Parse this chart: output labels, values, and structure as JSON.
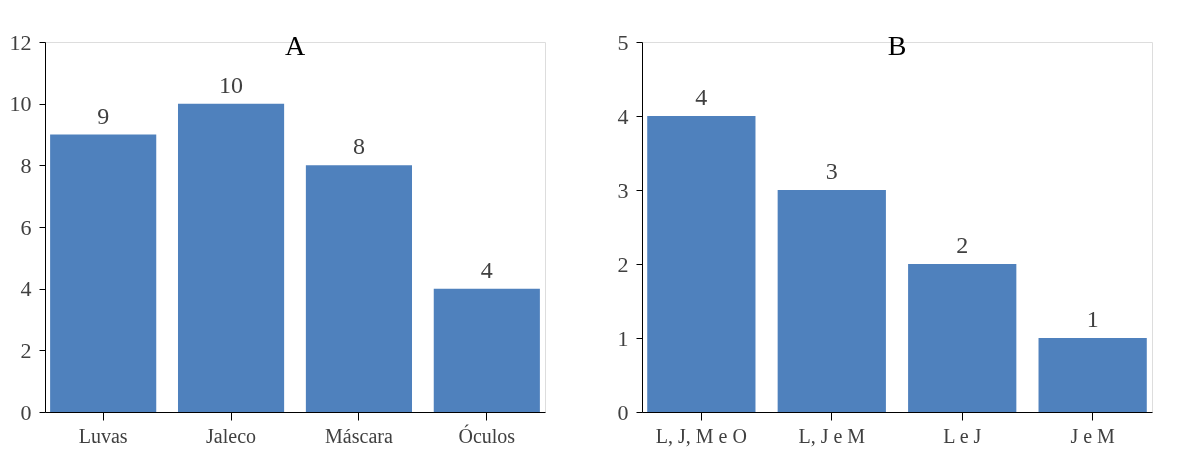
{
  "chart_data": [
    {
      "type": "bar",
      "title": "A",
      "categories": [
        "Luvas",
        "Jaleco",
        "Máscara",
        "Óculos"
      ],
      "values": [
        9,
        10,
        8,
        4
      ],
      "color": "#4f81bd",
      "ylim": [
        0,
        12
      ],
      "yticks": [
        0,
        2,
        4,
        6,
        8,
        10,
        12
      ],
      "data_labels": true,
      "grid": false
    },
    {
      "type": "bar",
      "title": "B",
      "categories": [
        "L, J, M e O",
        "L, J e M",
        "L e J",
        "J e M"
      ],
      "values": [
        4,
        3,
        2,
        1
      ],
      "color": "#4f81bd",
      "ylim": [
        0,
        5
      ],
      "yticks": [
        0,
        1,
        2,
        3,
        4,
        5
      ],
      "data_labels": true,
      "grid": false
    }
  ]
}
